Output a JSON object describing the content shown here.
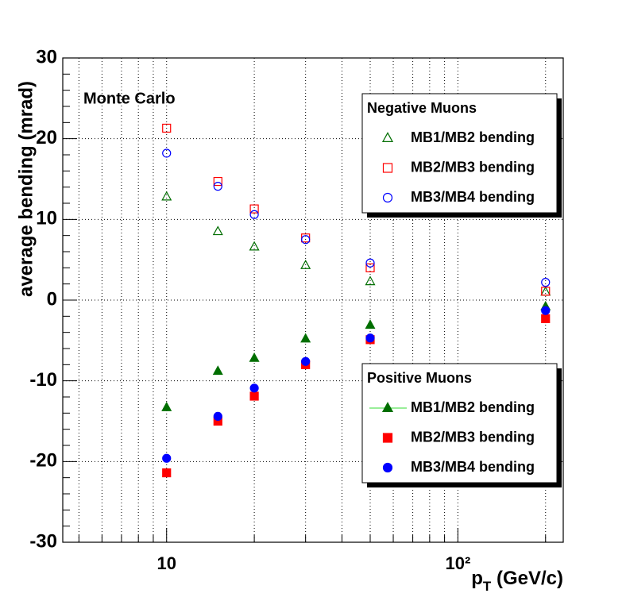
{
  "chart_data": {
    "type": "scatter",
    "annotation": "Monte Carlo",
    "ylabel": "average bending (mrad)",
    "xlabel": [
      "p",
      "T",
      " (GeV/c)"
    ],
    "x": [
      10,
      15,
      20,
      30,
      50,
      200
    ],
    "xlim": [
      4.4,
      230
    ],
    "xlog": true,
    "xticks": [
      10,
      {
        "value": 100,
        "label": "10²"
      }
    ],
    "xminorticks": [
      5,
      6,
      7,
      8,
      9,
      20,
      30,
      40,
      50,
      60,
      70,
      80,
      90,
      200
    ],
    "ylim": [
      -30,
      30
    ],
    "yticks": [
      -30,
      -20,
      -10,
      0,
      10,
      20,
      30
    ],
    "yminorticks": [
      -28,
      -26,
      -24,
      -22,
      -18,
      -16,
      -14,
      -12,
      -8,
      -6,
      -4,
      -2,
      2,
      4,
      6,
      8,
      12,
      14,
      16,
      18,
      22,
      24,
      26,
      28
    ],
    "grid": true,
    "groups": [
      {
        "name": "Negative Muons",
        "series": [
          {
            "name": "MB1/MB2 bending",
            "color": "#006e00",
            "marker": "triangle",
            "filled": false,
            "values": [
              12.8,
              8.5,
              6.6,
              4.3,
              2.3,
              1.0
            ]
          },
          {
            "name": "MB2/MB3 bending",
            "color": "#ff0000",
            "marker": "square",
            "filled": false,
            "values": [
              21.3,
              14.7,
              11.3,
              7.7,
              4.0,
              1.1
            ]
          },
          {
            "name": "MB3/MB4 bending",
            "color": "#0000ff",
            "marker": "circle",
            "filled": false,
            "values": [
              18.2,
              14.1,
              10.6,
              7.5,
              4.6,
              2.2
            ]
          }
        ]
      },
      {
        "name": "Positive Muons",
        "series": [
          {
            "name": "MB1/MB2 bending",
            "color": "#006e00",
            "marker": "triangle",
            "filled": true,
            "line_color": "#33dd33",
            "values": [
              -13.3,
              -8.8,
              -7.2,
              -4.8,
              -3.1,
              -0.8
            ]
          },
          {
            "name": "MB2/MB3 bending",
            "color": "#ff0000",
            "marker": "square",
            "filled": true,
            "values": [
              -21.4,
              -15.0,
              -11.9,
              -8.0,
              -4.9,
              -2.3
            ]
          },
          {
            "name": "MB3/MB4 bending",
            "color": "#0000ff",
            "marker": "circle",
            "filled": true,
            "values": [
              -19.6,
              -14.4,
              -10.9,
              -7.6,
              -4.7,
              -1.3
            ]
          }
        ]
      }
    ]
  }
}
